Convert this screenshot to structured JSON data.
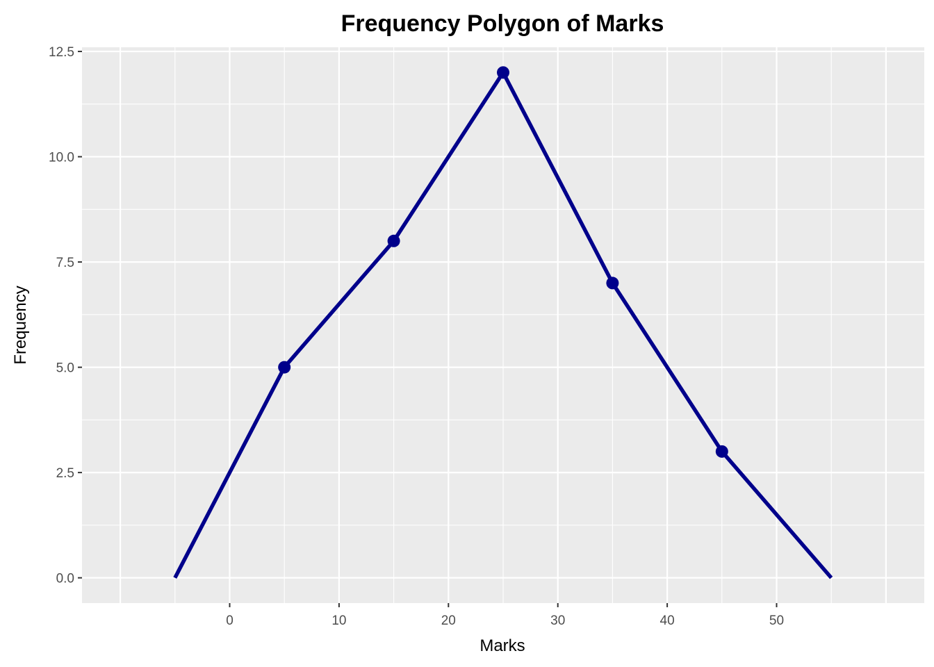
{
  "chart_data": {
    "type": "line",
    "title": "Frequency Polygon of Marks",
    "xlabel": "Marks",
    "ylabel": "Frequency",
    "x": [
      -5,
      5,
      15,
      25,
      35,
      45,
      55
    ],
    "series": [
      {
        "values": [
          0,
          5,
          8,
          12,
          7,
          3,
          0
        ],
        "points_shown": [
          false,
          true,
          true,
          true,
          true,
          true,
          false
        ]
      }
    ],
    "xlim": [
      -13.5,
      63.5
    ],
    "ylim": [
      -0.6,
      12.6
    ],
    "x_ticks": [
      0,
      10,
      20,
      30,
      40,
      50
    ],
    "x_tick_labels": [
      "0",
      "10",
      "20",
      "30",
      "40",
      "50"
    ],
    "y_ticks": [
      0,
      2.5,
      5,
      7.5,
      10,
      12.5
    ],
    "y_tick_labels": [
      "0.0",
      "2.5",
      "5.0",
      "7.5",
      "10.0",
      "12.5"
    ],
    "grid": true,
    "colors": {
      "line": "#00008B",
      "panel": "#EBEBEB",
      "grid": "#FFFFFF"
    }
  }
}
